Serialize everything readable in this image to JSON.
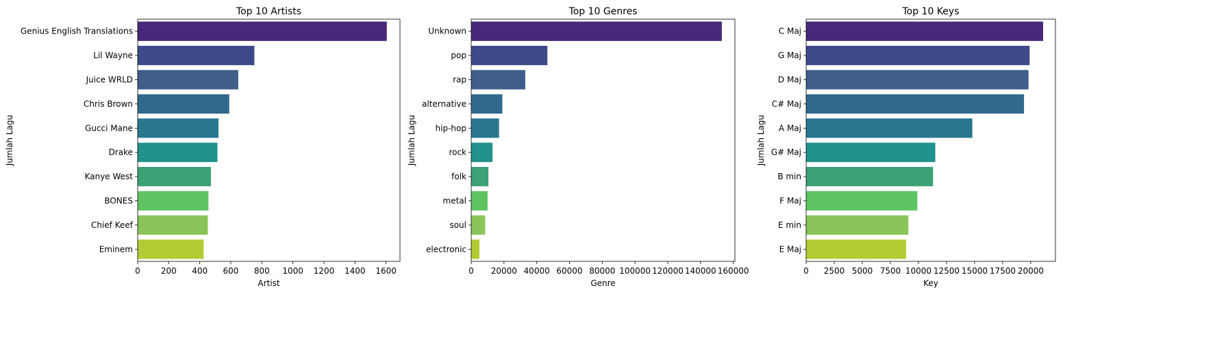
{
  "chart_data": [
    {
      "type": "bar",
      "orientation": "horizontal",
      "title": "Top 10 Artists",
      "xlabel": "Artist",
      "ylabel": "Jumlah Lagu",
      "categories": [
        "Genius English Translations",
        "Lil Wayne",
        "Juice WRLD",
        "Chris Brown",
        "Gucci Mane",
        "Drake",
        "Kanye West",
        "BONES",
        "Chief Keef",
        "Eminem"
      ],
      "values": [
        1605,
        752,
        648,
        590,
        521,
        514,
        472,
        456,
        452,
        425
      ],
      "xlim": [
        0,
        1690
      ],
      "xticks": [
        0,
        200,
        400,
        600,
        800,
        1000,
        1200,
        1400,
        1600
      ],
      "colors": [
        "#482878",
        "#3e4989",
        "#3f5e8a",
        "#31688e",
        "#2a788e",
        "#21918c",
        "#3aa274",
        "#5ec462",
        "#89c55a",
        "#b5cb35"
      ]
    },
    {
      "type": "bar",
      "orientation": "horizontal",
      "title": "Top 10 Genres",
      "xlabel": "Genre",
      "ylabel": "Jumlah Lagu",
      "categories": [
        "Unknown",
        "pop",
        "rap",
        "alternative",
        "hip-hop",
        "rock",
        "folk",
        "metal",
        "soul",
        "electronic"
      ],
      "values": [
        153000,
        46500,
        33000,
        19000,
        17000,
        13000,
        10500,
        10000,
        8500,
        5000
      ],
      "xlim": [
        0,
        161000
      ],
      "xticks": [
        0,
        20000,
        40000,
        60000,
        80000,
        100000,
        120000,
        140000,
        160000
      ],
      "colors": [
        "#482878",
        "#3e4989",
        "#3f5e8a",
        "#31688e",
        "#2a788e",
        "#21918c",
        "#3aa274",
        "#5ec462",
        "#89c55a",
        "#b5cb35"
      ]
    },
    {
      "type": "bar",
      "orientation": "horizontal",
      "title": "Top 10 Keys",
      "xlabel": "Key",
      "ylabel": "Jumlah Lagu",
      "categories": [
        "C Maj",
        "G Maj",
        "D Maj",
        "C# Maj",
        "A Maj",
        "G# Maj",
        "B min",
        "F Maj",
        "E min",
        "E Maj"
      ],
      "values": [
        21100,
        19900,
        19800,
        19400,
        14800,
        11500,
        11300,
        9900,
        9100,
        8900
      ],
      "xlim": [
        0,
        22200
      ],
      "xticks": [
        0,
        2500,
        5000,
        7500,
        10000,
        12500,
        15000,
        17500,
        20000
      ],
      "colors": [
        "#482878",
        "#3e4989",
        "#3f5e8a",
        "#31688e",
        "#2a788e",
        "#21918c",
        "#3aa274",
        "#5ec462",
        "#89c55a",
        "#b5cb35"
      ]
    }
  ]
}
